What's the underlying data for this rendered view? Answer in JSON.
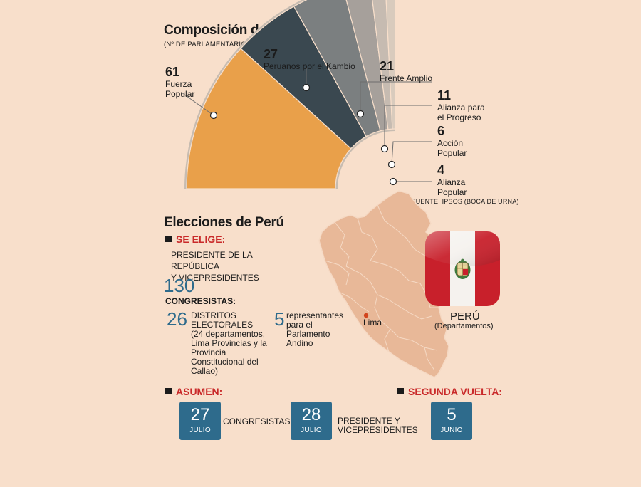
{
  "congress": {
    "title": "Composición del Congreso",
    "subtitle": "(Nº DE PARLAMENTARIOS)",
    "source": "FUENTE: IPSOS (BOCA DE URNA)",
    "chart_data": {
      "type": "pie",
      "title": "Composición del Congreso",
      "subtitle": "(Nº DE PARLAMENTARIOS)",
      "categories": [
        "Fuerza Popular",
        "Peruanos por el Kambio",
        "Frente Amplio",
        "Alianza para el Progreso",
        "Acción Popular",
        "Alianza Popular"
      ],
      "values": [
        61,
        27,
        21,
        11,
        6,
        4
      ],
      "colors": [
        "#e9a04a",
        "#3a4850",
        "#7b7f80",
        "#a6a09b",
        "#c6bbb1",
        "#d9cbbd"
      ]
    },
    "parties": [
      {
        "value": "61",
        "name_lines": [
          "Fuerza",
          "Popular"
        ]
      },
      {
        "value": "27",
        "name_lines": [
          "Peruanos por el Kambio"
        ]
      },
      {
        "value": "21",
        "name_lines": [
          "Frente Amplio"
        ]
      },
      {
        "value": "11",
        "name_lines": [
          "Alianza para",
          "el Progreso"
        ]
      },
      {
        "value": "6",
        "name_lines": [
          "Acción",
          "Popular"
        ]
      },
      {
        "value": "4",
        "name_lines": [
          "Alianza",
          "Popular"
        ]
      }
    ]
  },
  "elections": {
    "title": "Elecciones de Perú",
    "se_elige": "SE ELIGE:",
    "pres_line1": "PRESIDENTE DE LA REPÚBLICA",
    "pres_line2": "Y VICEPRESIDENTES",
    "total_congresistas": "130",
    "congresistas_label": "CONGRESISTAS:",
    "distritos_num": "26",
    "distritos_text": [
      "DISTRITOS",
      "ELECTORALES",
      "(24 departamentos,",
      "Lima Provincias y la",
      "Provincia",
      "Constitucional del",
      "Callao)"
    ],
    "andino_num": "5",
    "andino_text": [
      "representantes",
      "para el",
      "Parlamento",
      "Andino"
    ],
    "lima": "Lima",
    "peru": "PERÚ",
    "peru_sub": "(Departamentos)",
    "asumen": "ASUMEN:",
    "segunda_vuelta": "SEGUNDA VUELTA:",
    "dates": [
      {
        "day": "27",
        "month": "JULIO",
        "label": "CONGRESISTAS"
      },
      {
        "day": "28",
        "month": "JULIO",
        "label_lines": [
          "PRESIDENTE Y",
          "VICEPRESIDENTES"
        ]
      },
      {
        "day": "5",
        "month": "JUNIO"
      }
    ]
  },
  "colors": {
    "background": "#f8dfcb",
    "accent_blue": "#2e6b8c",
    "heading_red": "#c92a2a",
    "map_fill": "#e8b898",
    "flag_red": "#c8202b"
  }
}
